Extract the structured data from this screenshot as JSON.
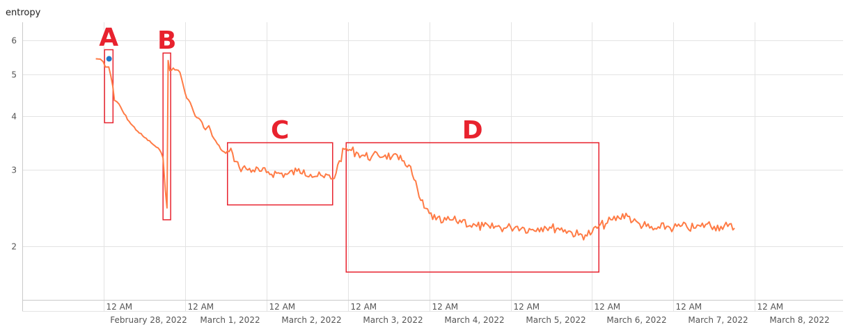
{
  "chart_data": {
    "type": "line",
    "ylabel": "entropy",
    "y_scale": "log",
    "ylim": [
      1.5,
      6.6
    ],
    "y_ticks": [
      2,
      3,
      4,
      5,
      6
    ],
    "x_start": "2022-02-27T00:00",
    "x_end": "2022-03-09T02:00",
    "x_tick_label": "12 AM",
    "x_ticks": [
      "2022-02-28T00:00",
      "2022-03-01T00:00",
      "2022-03-02T00:00",
      "2022-03-03T00:00",
      "2022-03-04T00:00",
      "2022-03-05T00:00",
      "2022-03-06T00:00",
      "2022-03-07T00:00",
      "2022-03-08T00:00"
    ],
    "date_labels": [
      "February 28, 2022",
      "March 1, 2022",
      "March 2, 2022",
      "March 3, 2022",
      "March 4, 2022",
      "March 5, 2022",
      "March 6, 2022",
      "March 7, 2022",
      "March 8, 2022"
    ],
    "series": [
      {
        "color": "#FF7B45",
        "points": [
          [
            "2022-02-27T21:40",
            5.43
          ],
          [
            "2022-02-27T23:00",
            5.42
          ],
          [
            "2022-02-27T23:50",
            5.35
          ],
          [
            "2022-02-28T00:30",
            5.2
          ],
          [
            "2022-02-28T01:30",
            5.2
          ],
          [
            "2022-02-28T02:40",
            4.7
          ],
          [
            "2022-02-28T03:10",
            4.35
          ],
          [
            "2022-02-28T04:30",
            4.27
          ],
          [
            "2022-02-28T06:00",
            4.05
          ],
          [
            "2022-02-28T08:00",
            3.84
          ],
          [
            "2022-02-28T10:00",
            3.69
          ],
          [
            "2022-02-28T12:00",
            3.57
          ],
          [
            "2022-02-28T14:00",
            3.47
          ],
          [
            "2022-02-28T15:30",
            3.39
          ],
          [
            "2022-02-28T16:30",
            3.34
          ],
          [
            "2022-02-28T17:30",
            3.2
          ],
          [
            "2022-02-28T18:10",
            2.7
          ],
          [
            "2022-02-28T18:40",
            2.45
          ],
          [
            "2022-02-28T19:00",
            5.38
          ],
          [
            "2022-02-28T19:30",
            5.1
          ],
          [
            "2022-02-28T20:30",
            5.17
          ],
          [
            "2022-02-28T21:30",
            5.12
          ],
          [
            "2022-02-28T22:30",
            5.05
          ],
          [
            "2022-02-28T23:30",
            4.7
          ],
          [
            "2022-03-01T00:30",
            4.4
          ],
          [
            "2022-03-01T01:30",
            4.3
          ],
          [
            "2022-03-01T03:00",
            4.0
          ],
          [
            "2022-03-01T04:30",
            3.92
          ],
          [
            "2022-03-01T06:00",
            3.72
          ],
          [
            "2022-03-01T07:00",
            3.8
          ],
          [
            "2022-03-01T08:00",
            3.6
          ],
          [
            "2022-03-01T09:30",
            3.45
          ],
          [
            "2022-03-01T11:00",
            3.32
          ],
          [
            "2022-03-01T12:00",
            3.28
          ],
          [
            "2022-03-01T13:00",
            3.31
          ],
          [
            "2022-03-01T14:00",
            3.28
          ],
          [
            "2022-03-01T15:00",
            3.14
          ],
          [
            "2022-03-01T16:00",
            3.04
          ],
          [
            "2022-03-01T18:00",
            3.02
          ],
          [
            "2022-03-01T20:00",
            3.0
          ],
          [
            "2022-03-01T22:00",
            2.98
          ],
          [
            "2022-03-02T00:00",
            2.96
          ],
          [
            "2022-03-02T03:00",
            2.95
          ],
          [
            "2022-03-02T06:00",
            2.93
          ],
          [
            "2022-03-02T09:00",
            2.98
          ],
          [
            "2022-03-02T11:00",
            3.0
          ],
          [
            "2022-03-02T13:00",
            2.93
          ],
          [
            "2022-03-02T15:00",
            2.9
          ],
          [
            "2022-03-02T17:00",
            2.88
          ],
          [
            "2022-03-02T18:30",
            2.92
          ],
          [
            "2022-03-02T19:30",
            2.86
          ],
          [
            "2022-03-02T20:30",
            2.95
          ],
          [
            "2022-03-02T21:30",
            3.15
          ],
          [
            "2022-03-02T23:00",
            3.35
          ],
          [
            "2022-03-03T01:00",
            3.33
          ],
          [
            "2022-03-03T03:00",
            3.28
          ],
          [
            "2022-03-03T05:00",
            3.23
          ],
          [
            "2022-03-03T07:00",
            3.22
          ],
          [
            "2022-03-03T09:00",
            3.24
          ],
          [
            "2022-03-03T11:00",
            3.25
          ],
          [
            "2022-03-03T13:00",
            3.22
          ],
          [
            "2022-03-03T15:00",
            3.17
          ],
          [
            "2022-03-03T16:30",
            3.15
          ],
          [
            "2022-03-03T18:00",
            3.08
          ],
          [
            "2022-03-03T19:30",
            2.85
          ],
          [
            "2022-03-03T21:00",
            2.6
          ],
          [
            "2022-03-03T22:30",
            2.45
          ],
          [
            "2022-03-04T00:00",
            2.38
          ],
          [
            "2022-03-04T02:00",
            2.3
          ],
          [
            "2022-03-04T04:00",
            2.27
          ],
          [
            "2022-03-04T06:00",
            2.3
          ],
          [
            "2022-03-04T08:00",
            2.28
          ],
          [
            "2022-03-04T10:00",
            2.3
          ],
          [
            "2022-03-04T12:00",
            2.23
          ],
          [
            "2022-03-04T14:00",
            2.22
          ],
          [
            "2022-03-04T16:00",
            2.22
          ],
          [
            "2022-03-04T18:00",
            2.2
          ],
          [
            "2022-03-04T20:00",
            2.22
          ],
          [
            "2022-03-04T22:00",
            2.2
          ],
          [
            "2022-03-05T00:00",
            2.21
          ],
          [
            "2022-03-05T02:00",
            2.22
          ],
          [
            "2022-03-05T04:00",
            2.2
          ],
          [
            "2022-03-05T06:00",
            2.18
          ],
          [
            "2022-03-05T08:00",
            2.2
          ],
          [
            "2022-03-05T10:00",
            2.22
          ],
          [
            "2022-03-05T12:00",
            2.2
          ],
          [
            "2022-03-05T14:00",
            2.2
          ],
          [
            "2022-03-05T16:00",
            2.18
          ],
          [
            "2022-03-05T18:00",
            2.15
          ],
          [
            "2022-03-05T20:00",
            2.12
          ],
          [
            "2022-03-05T22:00",
            2.12
          ],
          [
            "2022-03-06T00:00",
            2.15
          ],
          [
            "2022-03-06T02:00",
            2.22
          ],
          [
            "2022-03-06T04:00",
            2.25
          ],
          [
            "2022-03-06T06:00",
            2.3
          ],
          [
            "2022-03-06T08:00",
            2.32
          ],
          [
            "2022-03-06T10:00",
            2.38
          ],
          [
            "2022-03-06T12:00",
            2.28
          ],
          [
            "2022-03-06T14:00",
            2.25
          ],
          [
            "2022-03-06T16:00",
            2.22
          ],
          [
            "2022-03-06T18:00",
            2.18
          ],
          [
            "2022-03-06T20:00",
            2.2
          ],
          [
            "2022-03-06T22:00",
            2.22
          ],
          [
            "2022-03-07T00:00",
            2.2
          ],
          [
            "2022-03-07T02:00",
            2.22
          ],
          [
            "2022-03-07T04:00",
            2.21
          ],
          [
            "2022-03-07T06:00",
            2.2
          ],
          [
            "2022-03-07T08:00",
            2.22
          ],
          [
            "2022-03-07T10:00",
            2.25
          ],
          [
            "2022-03-07T12:00",
            2.22
          ],
          [
            "2022-03-07T14:00",
            2.22
          ],
          [
            "2022-03-07T16:00",
            2.22
          ],
          [
            "2022-03-07T18:00",
            2.2
          ]
        ]
      },
      {
        "type": "scatter",
        "color": "#1F78C8",
        "points": [
          [
            "2022-02-28T01:35",
            5.43
          ]
        ]
      }
    ]
  },
  "annotations": [
    {
      "letter": "A",
      "from": "2022-02-28T00:15",
      "to": "2022-02-28T02:45",
      "y_top": 5.7,
      "y_bottom": 3.86
    },
    {
      "letter": "B",
      "from": "2022-02-28T17:30",
      "to": "2022-02-28T19:45",
      "y_top": 5.6,
      "y_bottom": 2.3
    },
    {
      "letter": "C",
      "from": "2022-03-01T12:30",
      "to": "2022-03-02T19:30",
      "y_top": 3.47,
      "y_bottom": 2.49
    },
    {
      "letter": "D",
      "from": "2022-03-02T23:30",
      "to": "2022-03-06T02:00",
      "y_top": 3.47,
      "y_bottom": 1.74
    }
  ],
  "annotation_color": "#E8222E"
}
